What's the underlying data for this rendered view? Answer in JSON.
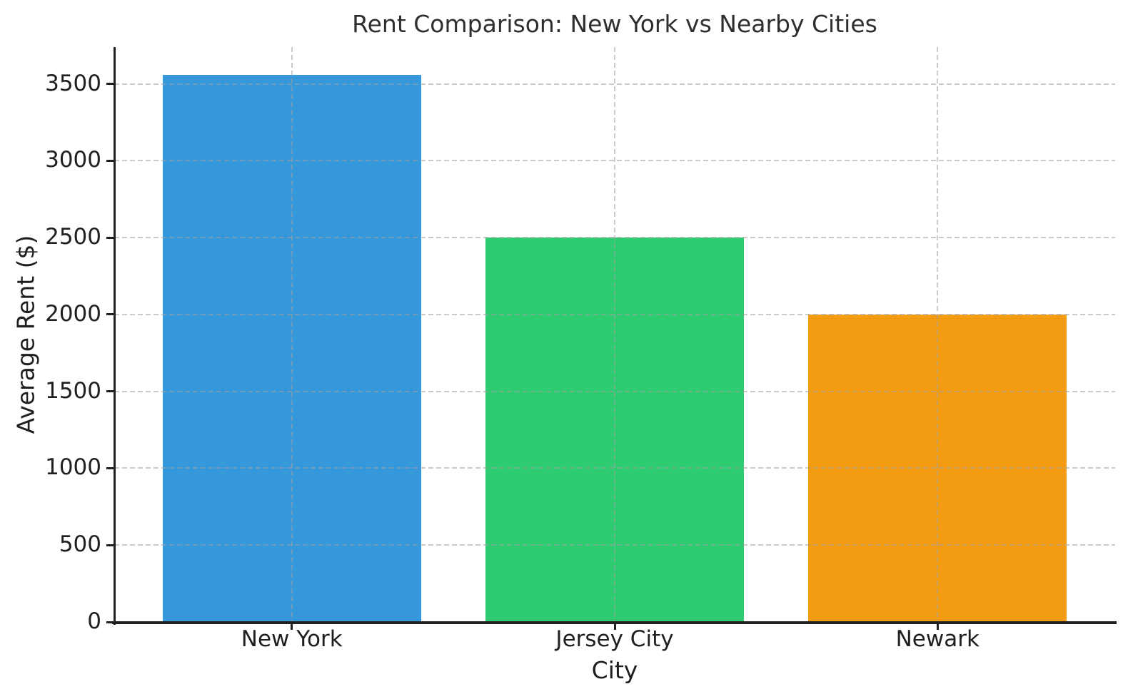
{
  "chart_data": {
    "type": "bar",
    "title": "Rent Comparison: New York vs Nearby Cities",
    "xlabel": "City",
    "ylabel": "Average Rent ($)",
    "categories": [
      "New York",
      "Jersey City",
      "Newark"
    ],
    "values": [
      3560,
      2500,
      2000
    ],
    "bar_colors": [
      "#3498db",
      "#2ecc71",
      "#f39c12"
    ],
    "ylim": [
      0,
      3740
    ],
    "yticks": [
      0,
      500,
      1000,
      1500,
      2000,
      2500,
      3000,
      3500
    ],
    "grid": "dashed gridlines on both axes, drawn above bars",
    "legend": "none",
    "spines": "left and bottom only"
  }
}
